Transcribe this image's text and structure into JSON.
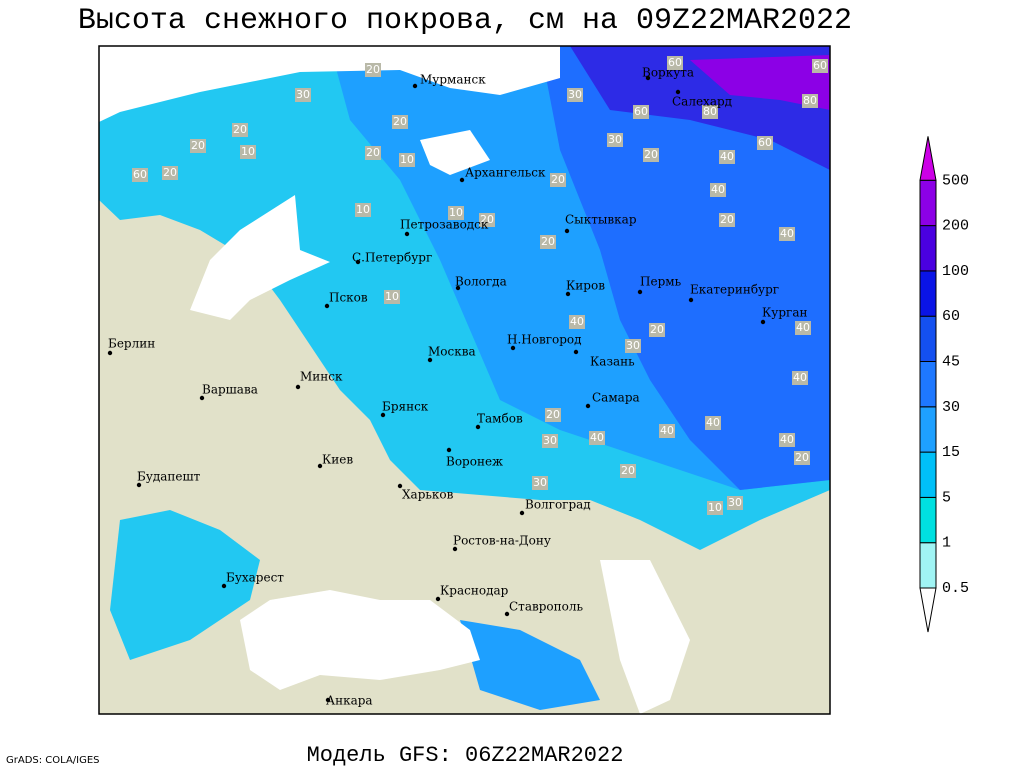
{
  "title": "Высота снежного покрова, см на 09Z22MAR2022",
  "footer": "Модель GFS: 06Z22MAR2022",
  "credit": "GrADS: COLA/IGES",
  "legend": {
    "levels": [
      0.5,
      1,
      5,
      15,
      30,
      45,
      60,
      100,
      200,
      500
    ],
    "colors": [
      "#ffffff",
      "#a0f4f4",
      "#00e0e0",
      "#00c0f8",
      "#1ea0ff",
      "#1e78ff",
      "#1450f0",
      "#0a14e6",
      "#4a00e0",
      "#8c00e6",
      "#cc00e6"
    ]
  },
  "cities": [
    "Мурманск",
    "Архангельск",
    "Воркута",
    "Салехард",
    "Петрозаводск",
    "Сыктывкар",
    "С.Петербург",
    "Вологда",
    "Киров",
    "Пермь",
    "Екатеринбург",
    "Курган",
    "Псков",
    "Берлин",
    "Москва",
    "Н.Новгород",
    "Казань",
    "Минск",
    "Варшава",
    "Самара",
    "Брянск",
    "Тамбов",
    "Воронеж",
    "Киев",
    "Будапешт",
    "Харьков",
    "Волгоград",
    "Ростов-на-Дону",
    "Бухарест",
    "Краснодар",
    "Ставрополь",
    "Анкара"
  ],
  "contour_labels": [
    20,
    30,
    20,
    20,
    10,
    60,
    20,
    20,
    20,
    10,
    10,
    10,
    20,
    20,
    20,
    30,
    20,
    60,
    40,
    60,
    40,
    40,
    20,
    10,
    40,
    30,
    20,
    40,
    40,
    40,
    40,
    40,
    30,
    20,
    20,
    30,
    10,
    30,
    20,
    40,
    30,
    80,
    80,
    60,
    60
  ]
}
